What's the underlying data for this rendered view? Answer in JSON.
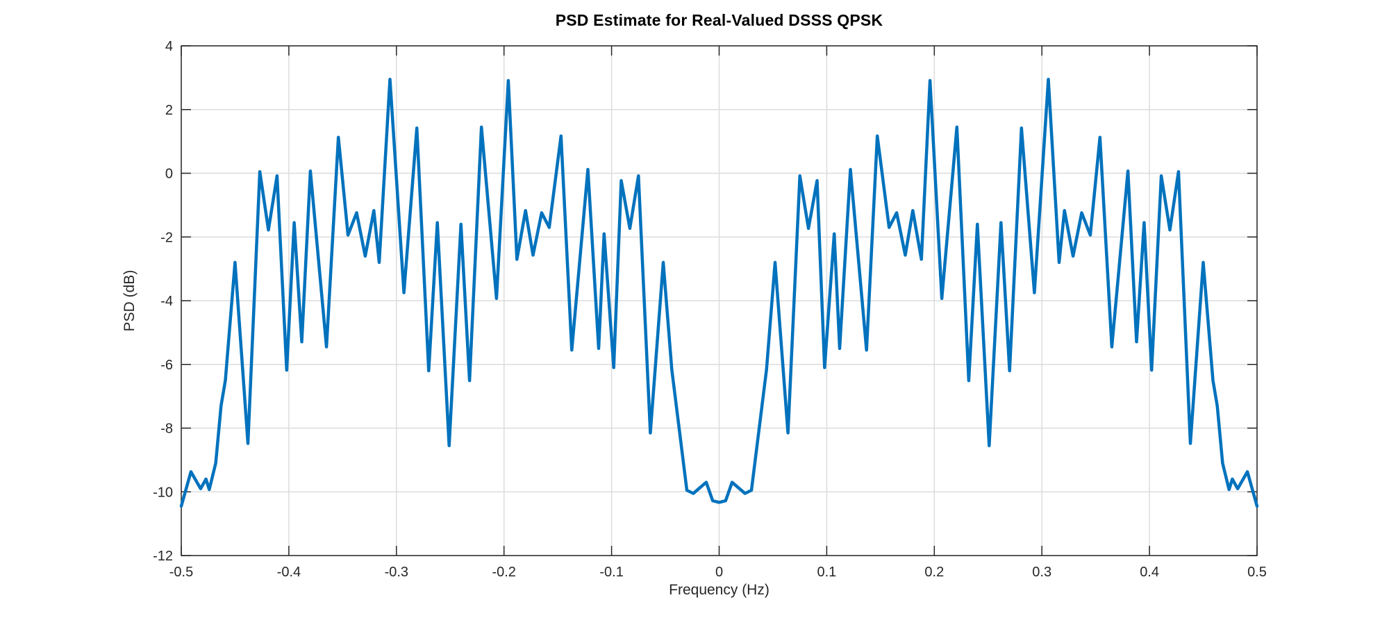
{
  "figure": {
    "background": "#ffffff"
  },
  "chart_data": {
    "type": "line",
    "title": "PSD Estimate for Real-Valued DSSS QPSK",
    "xlabel": "Frequency (Hz)",
    "ylabel": "PSD (dB)",
    "xlim": [
      -0.5,
      0.5
    ],
    "ylim": [
      -12,
      4
    ],
    "xticks": [
      -0.5,
      -0.4,
      -0.3,
      -0.2,
      -0.1,
      0,
      0.1,
      0.2,
      0.3,
      0.4,
      0.5
    ],
    "xtick_labels": [
      "-0.5",
      "-0.4",
      "-0.3",
      "-0.2",
      "-0.1",
      "0",
      "0.1",
      "0.2",
      "0.3",
      "0.4",
      "0.5"
    ],
    "yticks": [
      4,
      2,
      0,
      -2,
      -4,
      -6,
      -8,
      -10,
      -12
    ],
    "ytick_labels": [
      "4",
      "2",
      "0",
      "-2",
      "-4",
      "-6",
      "-8",
      "-10",
      "-12"
    ],
    "grid": true,
    "legend": "none",
    "line_color": "#0072BD",
    "axes_color": "#262626",
    "grid_color": "#dcdcdc",
    "series": [
      {
        "points": [
          [
            -0.5,
            -10.45
          ],
          [
            -0.491,
            -9.37
          ],
          [
            -0.482,
            -9.9
          ],
          [
            -0.477,
            -9.6
          ],
          [
            -0.474,
            -9.93
          ],
          [
            -0.468,
            -9.1
          ],
          [
            -0.463,
            -7.3
          ],
          [
            -0.459,
            -6.5
          ],
          [
            -0.45,
            -2.8
          ],
          [
            -0.438,
            -8.48
          ],
          [
            -0.427,
            0.05
          ],
          [
            -0.419,
            -1.78
          ],
          [
            -0.411,
            -0.08
          ],
          [
            -0.402,
            -6.18
          ],
          [
            -0.395,
            -1.55
          ],
          [
            -0.388,
            -5.29
          ],
          [
            -0.38,
            0.07
          ],
          [
            -0.365,
            -5.45
          ],
          [
            -0.354,
            1.13
          ],
          [
            -0.345,
            -1.94
          ],
          [
            -0.337,
            -1.24
          ],
          [
            -0.329,
            -2.6
          ],
          [
            -0.321,
            -1.17
          ],
          [
            -0.316,
            -2.8
          ],
          [
            -0.306,
            2.95
          ],
          [
            -0.293,
            -3.75
          ],
          [
            -0.281,
            1.42
          ],
          [
            -0.27,
            -6.2
          ],
          [
            -0.262,
            -1.55
          ],
          [
            -0.251,
            -8.55
          ],
          [
            -0.24,
            -1.6
          ],
          [
            -0.232,
            -6.51
          ],
          [
            -0.221,
            1.45
          ],
          [
            -0.207,
            -3.93
          ],
          [
            -0.196,
            2.91
          ],
          [
            -0.188,
            -2.7
          ],
          [
            -0.18,
            -1.17
          ],
          [
            -0.173,
            -2.57
          ],
          [
            -0.165,
            -1.24
          ],
          [
            -0.158,
            -1.7
          ],
          [
            -0.147,
            1.17
          ],
          [
            -0.137,
            -5.55
          ],
          [
            -0.122,
            0.12
          ],
          [
            -0.112,
            -5.5
          ],
          [
            -0.107,
            -1.9
          ],
          [
            -0.098,
            -6.1
          ],
          [
            -0.091,
            -0.23
          ],
          [
            -0.083,
            -1.73
          ],
          [
            -0.075,
            -0.08
          ],
          [
            -0.064,
            -8.15
          ],
          [
            -0.052,
            -2.8
          ],
          [
            -0.044,
            -6.16
          ],
          [
            -0.03,
            -9.95
          ],
          [
            -0.024,
            -10.05
          ],
          [
            -0.012,
            -9.7
          ],
          [
            -0.006,
            -10.28
          ],
          [
            0,
            -10.33
          ],
          [
            0.006,
            -10.28
          ],
          [
            0.012,
            -9.7
          ],
          [
            0.024,
            -10.05
          ],
          [
            0.03,
            -9.95
          ],
          [
            0.044,
            -6.16
          ],
          [
            0.052,
            -2.8
          ],
          [
            0.064,
            -8.15
          ],
          [
            0.075,
            -0.08
          ],
          [
            0.083,
            -1.73
          ],
          [
            0.091,
            -0.23
          ],
          [
            0.098,
            -6.1
          ],
          [
            0.107,
            -1.9
          ],
          [
            0.112,
            -5.5
          ],
          [
            0.122,
            0.12
          ],
          [
            0.137,
            -5.55
          ],
          [
            0.147,
            1.17
          ],
          [
            0.158,
            -1.7
          ],
          [
            0.165,
            -1.24
          ],
          [
            0.173,
            -2.57
          ],
          [
            0.18,
            -1.17
          ],
          [
            0.188,
            -2.7
          ],
          [
            0.196,
            2.91
          ],
          [
            0.207,
            -3.93
          ],
          [
            0.221,
            1.45
          ],
          [
            0.232,
            -6.51
          ],
          [
            0.24,
            -1.6
          ],
          [
            0.251,
            -8.55
          ],
          [
            0.262,
            -1.55
          ],
          [
            0.27,
            -6.2
          ],
          [
            0.281,
            1.42
          ],
          [
            0.293,
            -3.75
          ],
          [
            0.306,
            2.95
          ],
          [
            0.316,
            -2.8
          ],
          [
            0.321,
            -1.17
          ],
          [
            0.329,
            -2.6
          ],
          [
            0.337,
            -1.24
          ],
          [
            0.345,
            -1.94
          ],
          [
            0.354,
            1.13
          ],
          [
            0.365,
            -5.45
          ],
          [
            0.38,
            0.07
          ],
          [
            0.388,
            -5.29
          ],
          [
            0.395,
            -1.55
          ],
          [
            0.402,
            -6.18
          ],
          [
            0.411,
            -0.08
          ],
          [
            0.419,
            -1.78
          ],
          [
            0.427,
            0.05
          ],
          [
            0.438,
            -8.48
          ],
          [
            0.45,
            -2.8
          ],
          [
            0.459,
            -6.5
          ],
          [
            0.463,
            -7.3
          ],
          [
            0.468,
            -9.1
          ],
          [
            0.474,
            -9.93
          ],
          [
            0.477,
            -9.6
          ],
          [
            0.482,
            -9.9
          ],
          [
            0.491,
            -9.37
          ],
          [
            0.5,
            -10.45
          ]
        ]
      }
    ]
  }
}
